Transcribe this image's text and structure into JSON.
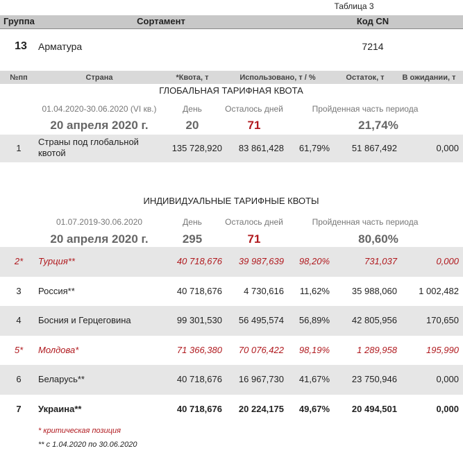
{
  "table_label": "Таблица 3",
  "header": [
    "Группа",
    "Сортамент",
    "Код CN"
  ],
  "group": {
    "number": "13",
    "name": "Арматура",
    "code": "7214"
  },
  "columns": [
    "№пп",
    "Страна",
    "*Квота, т",
    "Использовано, т / %",
    "Остаток, т",
    "В ожидании, т"
  ],
  "global": {
    "title": "ГЛОБАЛЬНАЯ ТАРИФНАЯ КВОТА",
    "period": "01.04.2020-30.06.2020 (VI кв.)",
    "day_label": "День",
    "remaining_label": "Осталось дней",
    "passed_label": "Пройденная часть периода",
    "date": "20 апреля 2020 г.",
    "day": "20",
    "remaining": "71",
    "passed": "21,74%",
    "rows": [
      [
        "1",
        "Страны под глобальной квотой",
        "135 728,920",
        "83 861,428",
        "61,79%",
        "51 867,492",
        "0,000"
      ]
    ]
  },
  "individual": {
    "title": "ИНДИВИДУАЛЬНЫЕ ТАРИФНЫЕ КВОТЫ",
    "period": "01.07.2019-30.06.2020",
    "day_label": "День",
    "remaining_label": "Осталось дней",
    "passed_label": "Пройденная часть периода",
    "date": "20 апреля 2020 г.",
    "day": "295",
    "remaining": "71",
    "passed": "80,60%",
    "rows": [
      [
        "2*",
        "Турция**",
        "40 718,676",
        "39 987,639",
        "98,20%",
        "731,037",
        "0,000"
      ],
      [
        "3",
        "Россия**",
        "40 718,676",
        "4 730,616",
        "11,62%",
        "35 988,060",
        "1 002,482"
      ],
      [
        "4",
        "Босния и Герцеговина",
        "99 301,530",
        "56 495,574",
        "56,89%",
        "42 805,956",
        "170,650"
      ],
      [
        "5*",
        "Молдова*",
        "71 366,380",
        "70 076,422",
        "98,19%",
        "1 289,958",
        "195,990"
      ],
      [
        "6",
        "Беларусь**",
        "40 718,676",
        "16 967,730",
        "41,67%",
        "23 750,946",
        "0,000"
      ],
      [
        "7",
        "Украина**",
        "40 718,676",
        "20 224,175",
        "49,67%",
        "20 494,501",
        "0,000"
      ]
    ]
  },
  "notes": [
    "* критическая позиция",
    "** с 1.04.2020 по 30.06.2020"
  ]
}
